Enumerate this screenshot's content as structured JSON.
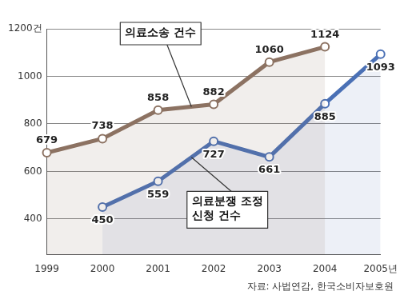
{
  "chart_data": {
    "type": "line",
    "categories": [
      "1999",
      "2000",
      "2001",
      "2002",
      "2003",
      "2004",
      "2005년"
    ],
    "series": [
      {
        "name": "의료소송 건수",
        "color": "#8c7262",
        "values": [
          679,
          738,
          858,
          882,
          1060,
          1124,
          null
        ]
      },
      {
        "name": "의료분쟁 조정\n신청 건수",
        "color": "#4a70b5",
        "values": [
          null,
          450,
          559,
          727,
          661,
          885,
          1093
        ]
      }
    ],
    "ylim": [
      250,
      1200
    ],
    "yticks": [
      400,
      600,
      800,
      1000,
      {
        "value": 1200,
        "label": "1200건"
      }
    ],
    "grid": true,
    "data_labels": true,
    "source": "자료: 사법연감, 한국소비자보호원"
  }
}
